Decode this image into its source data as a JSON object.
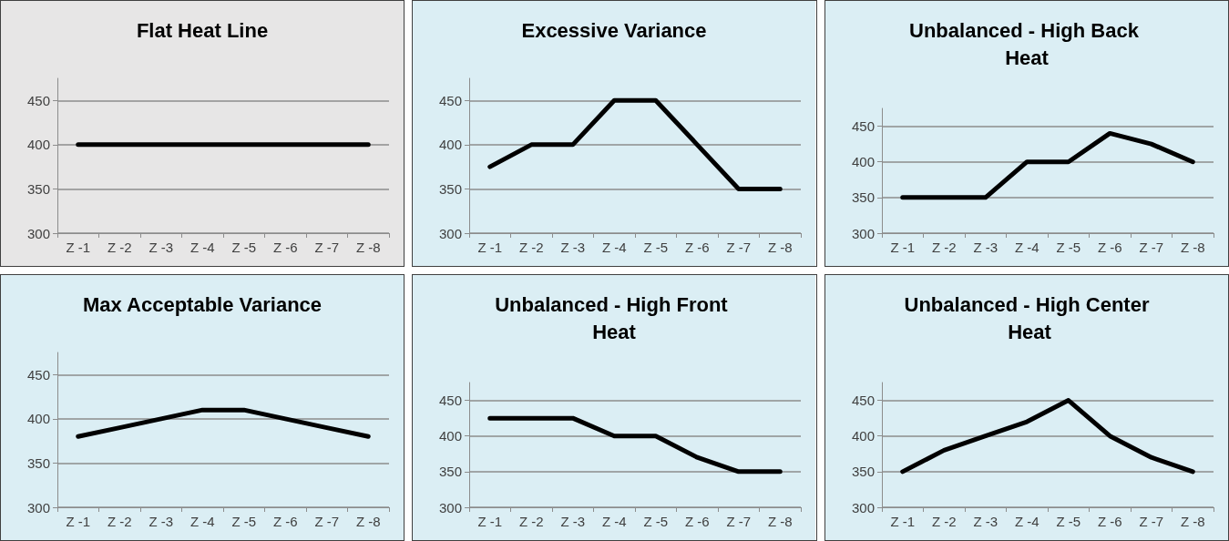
{
  "chart_data": [
    {
      "type": "line",
      "title": "Flat Heat Line",
      "categories": [
        "Z -1",
        "Z -2",
        "Z -3",
        "Z -4",
        "Z -5",
        "Z -6",
        "Z -7",
        "Z -8"
      ],
      "series": [
        {
          "color": "#000000",
          "values": [
            400,
            400,
            400,
            400,
            400,
            400,
            400,
            400
          ]
        }
      ],
      "ylim": [
        300,
        475
      ],
      "yticks": [
        300,
        350,
        400,
        450
      ],
      "grid": "y",
      "marker": "none",
      "line_style": "solid"
    },
    {
      "type": "line",
      "title": "Excessive Variance",
      "categories": [
        "Z -1",
        "Z -2",
        "Z -3",
        "Z -4",
        "Z -5",
        "Z -6",
        "Z -7",
        "Z -8"
      ],
      "series": [
        {
          "color": "#000000",
          "values": [
            375,
            400,
            400,
            450,
            450,
            400,
            350,
            350
          ]
        }
      ],
      "ylim": [
        300,
        475
      ],
      "yticks": [
        300,
        350,
        400,
        450
      ],
      "grid": "y",
      "marker": "none",
      "line_style": "solid"
    },
    {
      "type": "line",
      "title": "Unbalanced - High Back Heat",
      "categories": [
        "Z -1",
        "Z -2",
        "Z -3",
        "Z -4",
        "Z -5",
        "Z -6",
        "Z -7",
        "Z -8"
      ],
      "series": [
        {
          "color": "#000000",
          "values": [
            350,
            350,
            350,
            400,
            400,
            440,
            425,
            400
          ]
        }
      ],
      "ylim": [
        300,
        475
      ],
      "yticks": [
        300,
        350,
        400,
        450
      ],
      "grid": "y",
      "marker": "none",
      "line_style": "solid"
    },
    {
      "type": "line",
      "title": "Max Acceptable Variance",
      "categories": [
        "Z -1",
        "Z -2",
        "Z -3",
        "Z -4",
        "Z -5",
        "Z -6",
        "Z -7",
        "Z -8"
      ],
      "series": [
        {
          "color": "#000000",
          "values": [
            380,
            390,
            400,
            410,
            410,
            400,
            390,
            380
          ]
        }
      ],
      "ylim": [
        300,
        475
      ],
      "yticks": [
        300,
        350,
        400,
        450
      ],
      "grid": "y",
      "marker": "none",
      "line_style": "solid"
    },
    {
      "type": "line",
      "title": "Unbalanced - High Front Heat",
      "categories": [
        "Z -1",
        "Z -2",
        "Z -3",
        "Z -4",
        "Z -5",
        "Z -6",
        "Z -7",
        "Z -8"
      ],
      "series": [
        {
          "color": "#000000",
          "values": [
            425,
            425,
            425,
            400,
            400,
            370,
            350,
            350
          ]
        }
      ],
      "ylim": [
        300,
        475
      ],
      "yticks": [
        300,
        350,
        400,
        450
      ],
      "grid": "y",
      "marker": "none",
      "line_style": "solid"
    },
    {
      "type": "line",
      "title": "Unbalanced - High Center Heat",
      "categories": [
        "Z -1",
        "Z -2",
        "Z -3",
        "Z -4",
        "Z -5",
        "Z -6",
        "Z -7",
        "Z -8"
      ],
      "series": [
        {
          "color": "#000000",
          "values": [
            350,
            380,
            400,
            420,
            450,
            400,
            370,
            350
          ]
        }
      ],
      "ylim": [
        300,
        475
      ],
      "yticks": [
        300,
        350,
        400,
        450
      ],
      "grid": "y",
      "marker": "none",
      "line_style": "solid"
    }
  ]
}
